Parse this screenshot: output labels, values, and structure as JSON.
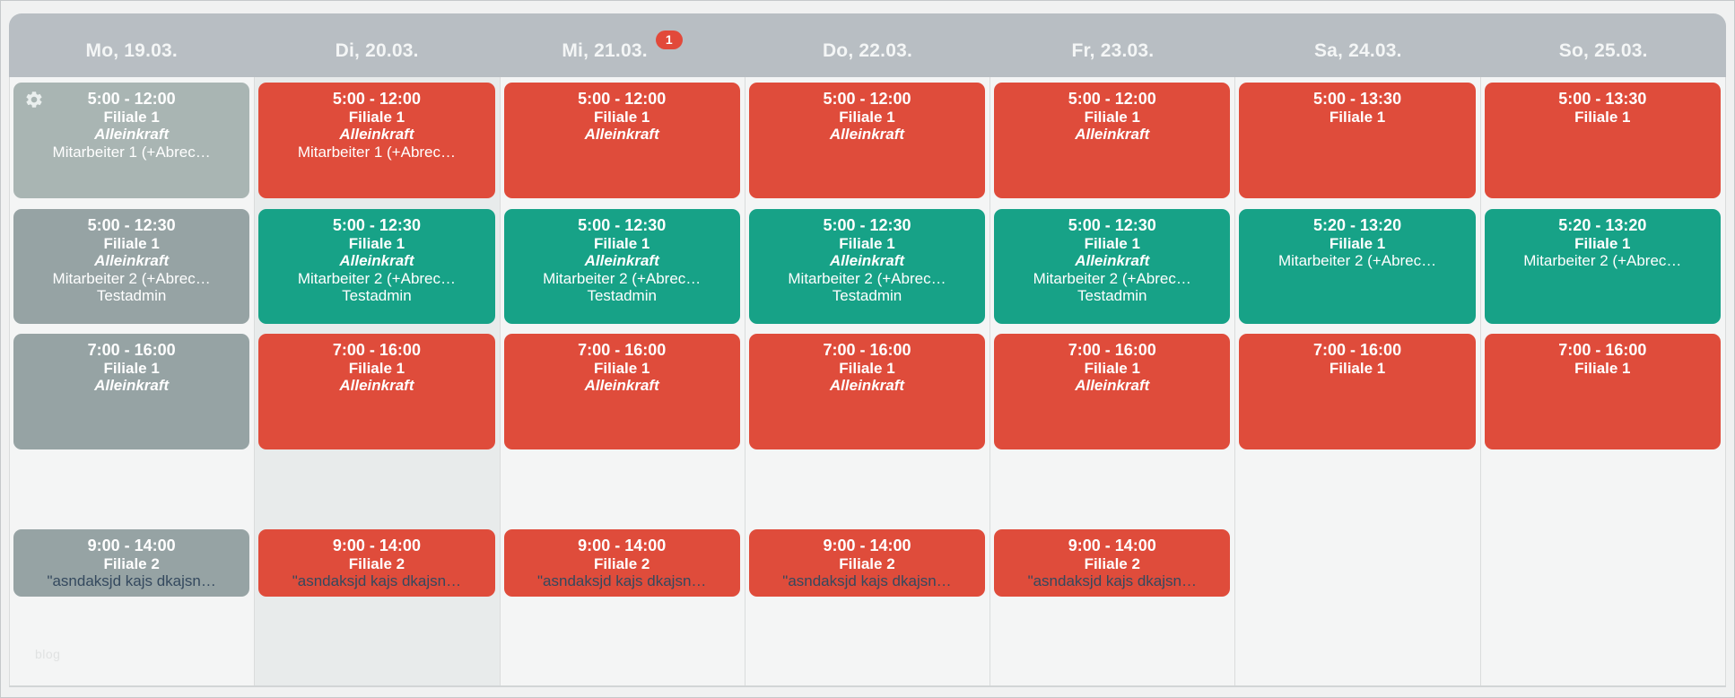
{
  "watermark": "blog",
  "colors": {
    "red": "#df4c3b",
    "teal": "#17a287",
    "gray": "#96a3a4",
    "gray_light": "#a9b5b3",
    "header_bg": "#b8bec3",
    "badge": "#e2493a",
    "note_text": "#34495e",
    "column_bg": "#f4f5f5",
    "highlighted_column_bg": "#e8ebeb"
  },
  "week": {
    "days": [
      {
        "id": "mo",
        "label": "Mo, 19.03.",
        "badge": null,
        "highlighted": false,
        "shifts": [
          {
            "slot": 1,
            "color": "gray_light",
            "gear": true,
            "lines": [
              {
                "text": "5:00 - 12:00",
                "style": "time"
              },
              {
                "text": "Filiale 1",
                "style": "bold"
              },
              {
                "text": "Alleinkraft",
                "style": "italic"
              },
              {
                "text": "Mitarbeiter 1 (+Abrec…",
                "style": "normal"
              }
            ]
          },
          {
            "slot": 2,
            "color": "gray",
            "gear": false,
            "lines": [
              {
                "text": "5:00 - 12:30",
                "style": "time"
              },
              {
                "text": "Filiale 1",
                "style": "bold"
              },
              {
                "text": "Alleinkraft",
                "style": "italic"
              },
              {
                "text": "Mitarbeiter 2 (+Abrec…",
                "style": "normal"
              },
              {
                "text": "Testadmin",
                "style": "normal"
              }
            ]
          },
          {
            "slot": 3,
            "color": "gray",
            "gear": false,
            "lines": [
              {
                "text": "7:00 - 16:00",
                "style": "time"
              },
              {
                "text": "Filiale 1",
                "style": "bold"
              },
              {
                "text": "Alleinkraft",
                "style": "italic"
              }
            ]
          },
          {
            "slot": 4,
            "color": "gray",
            "gear": false,
            "lines": [
              {
                "text": "9:00 - 14:00",
                "style": "time"
              },
              {
                "text": "Filiale 2",
                "style": "bold"
              },
              {
                "text": "\"asndaksjd kajs dkajsn…",
                "style": "note"
              }
            ]
          }
        ]
      },
      {
        "id": "di",
        "label": "Di, 20.03.",
        "badge": null,
        "highlighted": true,
        "shifts": [
          {
            "slot": 1,
            "color": "red",
            "gear": false,
            "lines": [
              {
                "text": "5:00 - 12:00",
                "style": "time"
              },
              {
                "text": "Filiale 1",
                "style": "bold"
              },
              {
                "text": "Alleinkraft",
                "style": "italic"
              },
              {
                "text": "Mitarbeiter 1 (+Abrec…",
                "style": "normal"
              }
            ]
          },
          {
            "slot": 2,
            "color": "teal",
            "gear": false,
            "lines": [
              {
                "text": "5:00 - 12:30",
                "style": "time"
              },
              {
                "text": "Filiale 1",
                "style": "bold"
              },
              {
                "text": "Alleinkraft",
                "style": "italic"
              },
              {
                "text": "Mitarbeiter 2 (+Abrec…",
                "style": "normal"
              },
              {
                "text": "Testadmin",
                "style": "normal"
              }
            ]
          },
          {
            "slot": 3,
            "color": "red",
            "gear": false,
            "lines": [
              {
                "text": "7:00 - 16:00",
                "style": "time"
              },
              {
                "text": "Filiale 1",
                "style": "bold"
              },
              {
                "text": "Alleinkraft",
                "style": "italic"
              }
            ]
          },
          {
            "slot": 4,
            "color": "red",
            "gear": false,
            "lines": [
              {
                "text": "9:00 - 14:00",
                "style": "time"
              },
              {
                "text": "Filiale 2",
                "style": "bold"
              },
              {
                "text": "\"asndaksjd kajs dkajsn…",
                "style": "note"
              }
            ]
          }
        ]
      },
      {
        "id": "mi",
        "label": "Mi, 21.03.",
        "badge": "1",
        "highlighted": false,
        "shifts": [
          {
            "slot": 1,
            "color": "red",
            "gear": false,
            "lines": [
              {
                "text": "5:00 - 12:00",
                "style": "time"
              },
              {
                "text": "Filiale 1",
                "style": "bold"
              },
              {
                "text": "Alleinkraft",
                "style": "italic"
              }
            ]
          },
          {
            "slot": 2,
            "color": "teal",
            "gear": false,
            "lines": [
              {
                "text": "5:00 - 12:30",
                "style": "time"
              },
              {
                "text": "Filiale 1",
                "style": "bold"
              },
              {
                "text": "Alleinkraft",
                "style": "italic"
              },
              {
                "text": "Mitarbeiter 2 (+Abrec…",
                "style": "normal"
              },
              {
                "text": "Testadmin",
                "style": "normal"
              }
            ]
          },
          {
            "slot": 3,
            "color": "red",
            "gear": false,
            "lines": [
              {
                "text": "7:00 - 16:00",
                "style": "time"
              },
              {
                "text": "Filiale 1",
                "style": "bold"
              },
              {
                "text": "Alleinkraft",
                "style": "italic"
              }
            ]
          },
          {
            "slot": 4,
            "color": "red",
            "gear": false,
            "lines": [
              {
                "text": "9:00 - 14:00",
                "style": "time"
              },
              {
                "text": "Filiale 2",
                "style": "bold"
              },
              {
                "text": "\"asndaksjd kajs dkajsn…",
                "style": "note"
              }
            ]
          }
        ]
      },
      {
        "id": "do",
        "label": "Do, 22.03.",
        "badge": null,
        "highlighted": false,
        "shifts": [
          {
            "slot": 1,
            "color": "red",
            "gear": false,
            "lines": [
              {
                "text": "5:00 - 12:00",
                "style": "time"
              },
              {
                "text": "Filiale 1",
                "style": "bold"
              },
              {
                "text": "Alleinkraft",
                "style": "italic"
              }
            ]
          },
          {
            "slot": 2,
            "color": "teal",
            "gear": false,
            "lines": [
              {
                "text": "5:00 - 12:30",
                "style": "time"
              },
              {
                "text": "Filiale 1",
                "style": "bold"
              },
              {
                "text": "Alleinkraft",
                "style": "italic"
              },
              {
                "text": "Mitarbeiter 2 (+Abrec…",
                "style": "normal"
              },
              {
                "text": "Testadmin",
                "style": "normal"
              }
            ]
          },
          {
            "slot": 3,
            "color": "red",
            "gear": false,
            "lines": [
              {
                "text": "7:00 - 16:00",
                "style": "time"
              },
              {
                "text": "Filiale 1",
                "style": "bold"
              },
              {
                "text": "Alleinkraft",
                "style": "italic"
              }
            ]
          },
          {
            "slot": 4,
            "color": "red",
            "gear": false,
            "lines": [
              {
                "text": "9:00 - 14:00",
                "style": "time"
              },
              {
                "text": "Filiale 2",
                "style": "bold"
              },
              {
                "text": "\"asndaksjd kajs dkajsn…",
                "style": "note"
              }
            ]
          }
        ]
      },
      {
        "id": "fr",
        "label": "Fr, 23.03.",
        "badge": null,
        "highlighted": false,
        "shifts": [
          {
            "slot": 1,
            "color": "red",
            "gear": false,
            "lines": [
              {
                "text": "5:00 - 12:00",
                "style": "time"
              },
              {
                "text": "Filiale 1",
                "style": "bold"
              },
              {
                "text": "Alleinkraft",
                "style": "italic"
              }
            ]
          },
          {
            "slot": 2,
            "color": "teal",
            "gear": false,
            "lines": [
              {
                "text": "5:00 - 12:30",
                "style": "time"
              },
              {
                "text": "Filiale 1",
                "style": "bold"
              },
              {
                "text": "Alleinkraft",
                "style": "italic"
              },
              {
                "text": "Mitarbeiter 2 (+Abrec…",
                "style": "normal"
              },
              {
                "text": "Testadmin",
                "style": "normal"
              }
            ]
          },
          {
            "slot": 3,
            "color": "red",
            "gear": false,
            "lines": [
              {
                "text": "7:00 - 16:00",
                "style": "time"
              },
              {
                "text": "Filiale 1",
                "style": "bold"
              },
              {
                "text": "Alleinkraft",
                "style": "italic"
              }
            ]
          },
          {
            "slot": 4,
            "color": "red",
            "gear": false,
            "lines": [
              {
                "text": "9:00 - 14:00",
                "style": "time"
              },
              {
                "text": "Filiale 2",
                "style": "bold"
              },
              {
                "text": "\"asndaksjd kajs dkajsn…",
                "style": "note"
              }
            ]
          }
        ]
      },
      {
        "id": "sa",
        "label": "Sa, 24.03.",
        "badge": null,
        "highlighted": false,
        "shifts": [
          {
            "slot": 1,
            "color": "red",
            "gear": false,
            "lines": [
              {
                "text": "5:00 - 13:30",
                "style": "time"
              },
              {
                "text": "Filiale 1",
                "style": "bold"
              }
            ]
          },
          {
            "slot": 2,
            "color": "teal",
            "gear": false,
            "lines": [
              {
                "text": "5:20 - 13:20",
                "style": "time"
              },
              {
                "text": "Filiale 1",
                "style": "bold"
              },
              {
                "text": "Mitarbeiter 2 (+Abrec…",
                "style": "normal"
              }
            ]
          },
          {
            "slot": 3,
            "color": "red",
            "gear": false,
            "lines": [
              {
                "text": "7:00 - 16:00",
                "style": "time"
              },
              {
                "text": "Filiale 1",
                "style": "bold"
              }
            ]
          }
        ]
      },
      {
        "id": "so",
        "label": "So, 25.03.",
        "badge": null,
        "highlighted": false,
        "shifts": [
          {
            "slot": 1,
            "color": "red",
            "gear": false,
            "lines": [
              {
                "text": "5:00 - 13:30",
                "style": "time"
              },
              {
                "text": "Filiale 1",
                "style": "bold"
              }
            ]
          },
          {
            "slot": 2,
            "color": "teal",
            "gear": false,
            "lines": [
              {
                "text": "5:20 - 13:20",
                "style": "time"
              },
              {
                "text": "Filiale 1",
                "style": "bold"
              },
              {
                "text": "Mitarbeiter 2 (+Abrec…",
                "style": "normal"
              }
            ]
          },
          {
            "slot": 3,
            "color": "red",
            "gear": false,
            "lines": [
              {
                "text": "7:00 - 16:00",
                "style": "time"
              },
              {
                "text": "Filiale 1",
                "style": "bold"
              }
            ]
          }
        ]
      }
    ]
  }
}
